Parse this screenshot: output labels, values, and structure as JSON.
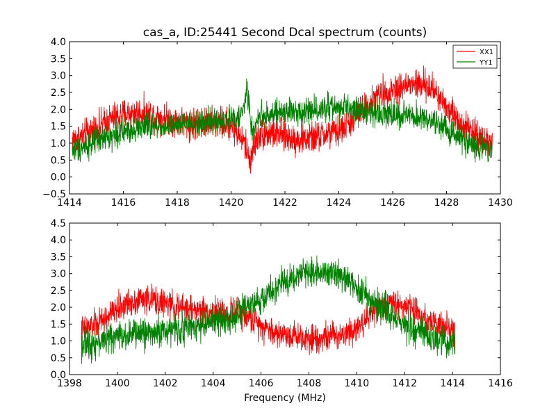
{
  "chart_data": [
    {
      "type": "line",
      "title": "cas_a, ID:25441 Second Dcal spectrum (counts)",
      "xlabel": "",
      "ylabel": "",
      "xlim": [
        1414,
        1430
      ],
      "ylim": [
        -0.5,
        4.0
      ],
      "xticks": [
        1414,
        1416,
        1418,
        1420,
        1422,
        1424,
        1426,
        1428,
        1430
      ],
      "yticks": [
        -0.5,
        0.0,
        0.5,
        1.0,
        1.5,
        2.0,
        2.5,
        3.0,
        3.5,
        4.0
      ],
      "xtick_labels": [
        "1414",
        "1416",
        "1418",
        "1420",
        "1422",
        "1424",
        "1426",
        "1428",
        "1430"
      ],
      "ytick_labels": [
        "−0.5",
        "0.0",
        "0.5",
        "1.0",
        "1.5",
        "2.0",
        "2.5",
        "3.0",
        "3.5",
        "4.0"
      ],
      "legend": {
        "position": "top-right",
        "entries": [
          "XX1",
          "YY1"
        ]
      },
      "grid": false,
      "series": [
        {
          "name": "XX1",
          "color": "#ff0000",
          "x": [
            1414.1,
            1414.5,
            1415.0,
            1415.5,
            1416.0,
            1416.5,
            1417.0,
            1417.5,
            1418.0,
            1418.5,
            1419.0,
            1419.5,
            1420.0,
            1420.5,
            1420.7,
            1421.0,
            1421.5,
            1422.0,
            1422.5,
            1423.0,
            1423.5,
            1424.0,
            1424.5,
            1425.0,
            1425.5,
            1426.0,
            1426.5,
            1427.0,
            1427.5,
            1428.0,
            1428.5,
            1429.0,
            1429.7
          ],
          "y": [
            1.1,
            1.2,
            1.45,
            1.7,
            1.85,
            1.9,
            1.85,
            1.75,
            1.65,
            1.6,
            1.6,
            1.6,
            1.55,
            1.0,
            0.5,
            1.25,
            1.3,
            1.2,
            1.1,
            1.15,
            1.25,
            1.35,
            1.7,
            2.1,
            2.4,
            2.6,
            2.7,
            2.75,
            2.6,
            2.1,
            1.6,
            1.3,
            1.0
          ],
          "noise": 0.35
        },
        {
          "name": "YY1",
          "color": "#008000",
          "x": [
            1414.1,
            1414.5,
            1415.0,
            1415.5,
            1416.0,
            1416.5,
            1417.0,
            1417.5,
            1418.0,
            1418.5,
            1419.0,
            1419.5,
            1420.0,
            1420.4,
            1420.6,
            1420.8,
            1421.0,
            1421.5,
            1422.0,
            1422.5,
            1423.0,
            1423.5,
            1424.0,
            1424.5,
            1425.0,
            1425.5,
            1426.0,
            1426.5,
            1427.0,
            1427.5,
            1428.0,
            1428.5,
            1429.0,
            1429.7
          ],
          "y": [
            0.8,
            0.9,
            1.05,
            1.2,
            1.35,
            1.45,
            1.5,
            1.5,
            1.5,
            1.55,
            1.6,
            1.65,
            1.7,
            1.8,
            2.6,
            1.2,
            1.8,
            1.85,
            1.9,
            1.95,
            2.0,
            2.05,
            2.05,
            2.0,
            1.95,
            1.9,
            1.85,
            1.8,
            1.75,
            1.6,
            1.4,
            1.15,
            0.95,
            0.75
          ],
          "noise": 0.3
        }
      ]
    },
    {
      "type": "line",
      "title": "",
      "xlabel": "Frequency (MHz)",
      "ylabel": "",
      "xlim": [
        1398,
        1416
      ],
      "ylim": [
        0.0,
        4.5
      ],
      "xticks": [
        1398,
        1400,
        1402,
        1404,
        1406,
        1408,
        1410,
        1412,
        1414,
        1416
      ],
      "yticks": [
        0.0,
        0.5,
        1.0,
        1.5,
        2.0,
        2.5,
        3.0,
        3.5,
        4.0,
        4.5
      ],
      "xtick_labels": [
        "1398",
        "1400",
        "1402",
        "1404",
        "1406",
        "1408",
        "1410",
        "1412",
        "1414",
        "1416"
      ],
      "ytick_labels": [
        "0.0",
        "0.5",
        "1.0",
        "1.5",
        "2.0",
        "2.5",
        "3.0",
        "3.5",
        "4.0",
        "4.5"
      ],
      "grid": false,
      "series": [
        {
          "name": "XX1",
          "color": "#ff0000",
          "x": [
            1398.5,
            1399.0,
            1399.5,
            1400.0,
            1400.5,
            1401.0,
            1401.5,
            1402.0,
            1402.5,
            1403.0,
            1403.5,
            1404.0,
            1404.5,
            1405.0,
            1405.5,
            1406.0,
            1406.5,
            1407.0,
            1407.5,
            1408.0,
            1408.5,
            1409.0,
            1409.5,
            1410.0,
            1410.5,
            1411.0,
            1411.5,
            1412.0,
            1412.5,
            1413.0,
            1413.5,
            1414.1
          ],
          "y": [
            1.3,
            1.45,
            1.65,
            1.95,
            2.15,
            2.25,
            2.2,
            2.1,
            2.0,
            1.95,
            1.9,
            1.85,
            1.85,
            1.8,
            1.7,
            1.5,
            1.25,
            1.2,
            1.15,
            1.1,
            1.1,
            1.15,
            1.25,
            1.4,
            1.75,
            2.05,
            2.1,
            2.05,
            1.85,
            1.65,
            1.45,
            1.2
          ],
          "noise": 0.32
        },
        {
          "name": "YY1",
          "color": "#008000",
          "x": [
            1398.5,
            1399.0,
            1399.5,
            1400.0,
            1400.5,
            1401.0,
            1401.5,
            1402.0,
            1402.5,
            1403.0,
            1403.5,
            1404.0,
            1404.5,
            1405.0,
            1405.5,
            1406.0,
            1406.5,
            1407.0,
            1407.5,
            1408.0,
            1408.5,
            1409.0,
            1409.5,
            1410.0,
            1410.5,
            1411.0,
            1411.5,
            1412.0,
            1412.5,
            1413.0,
            1413.5,
            1414.1
          ],
          "y": [
            0.9,
            0.95,
            1.05,
            1.15,
            1.2,
            1.25,
            1.25,
            1.3,
            1.35,
            1.4,
            1.5,
            1.55,
            1.65,
            1.8,
            2.0,
            2.2,
            2.5,
            2.75,
            2.95,
            3.05,
            3.1,
            3.05,
            2.85,
            2.6,
            2.3,
            2.0,
            1.75,
            1.5,
            1.3,
            1.15,
            1.0,
            0.9
          ],
          "noise": 0.34
        }
      ]
    }
  ]
}
